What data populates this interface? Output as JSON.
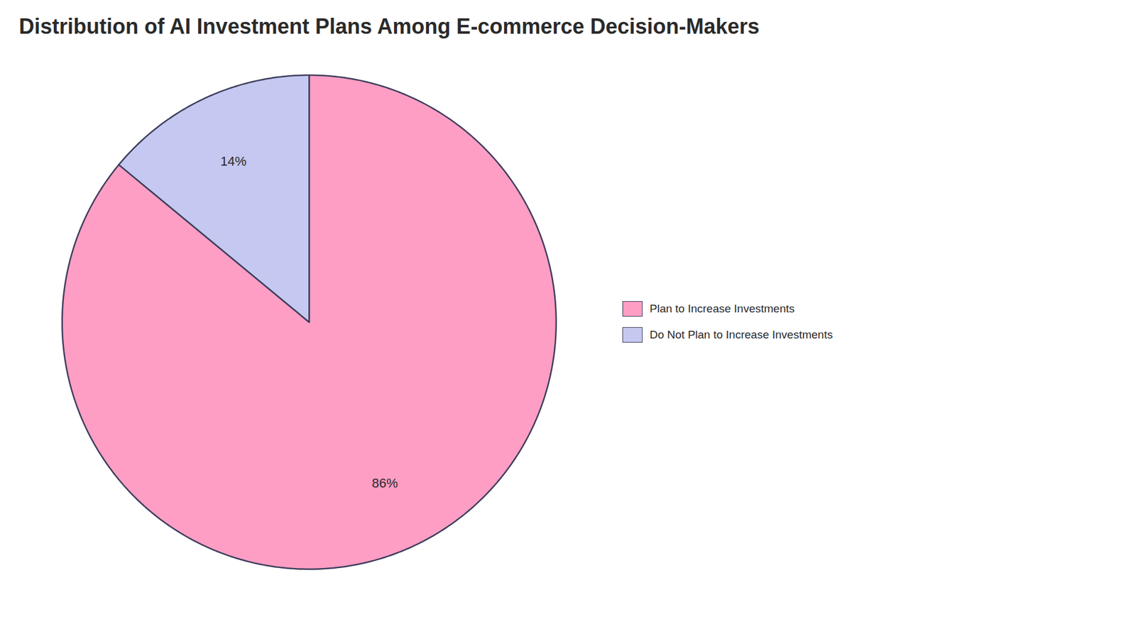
{
  "chart_data": {
    "type": "pie",
    "title": "Distribution of AI Investment Plans Among E-commerce Decision-Makers",
    "categories": [
      "Plan to Increase Investments",
      "Do Not Plan to Increase Investments"
    ],
    "values": [
      86,
      14
    ],
    "value_labels": [
      "86%",
      "14%"
    ],
    "data_labels": true,
    "colors": [
      "#FF9EC4",
      "#C5C8F0"
    ],
    "legend": "right"
  }
}
